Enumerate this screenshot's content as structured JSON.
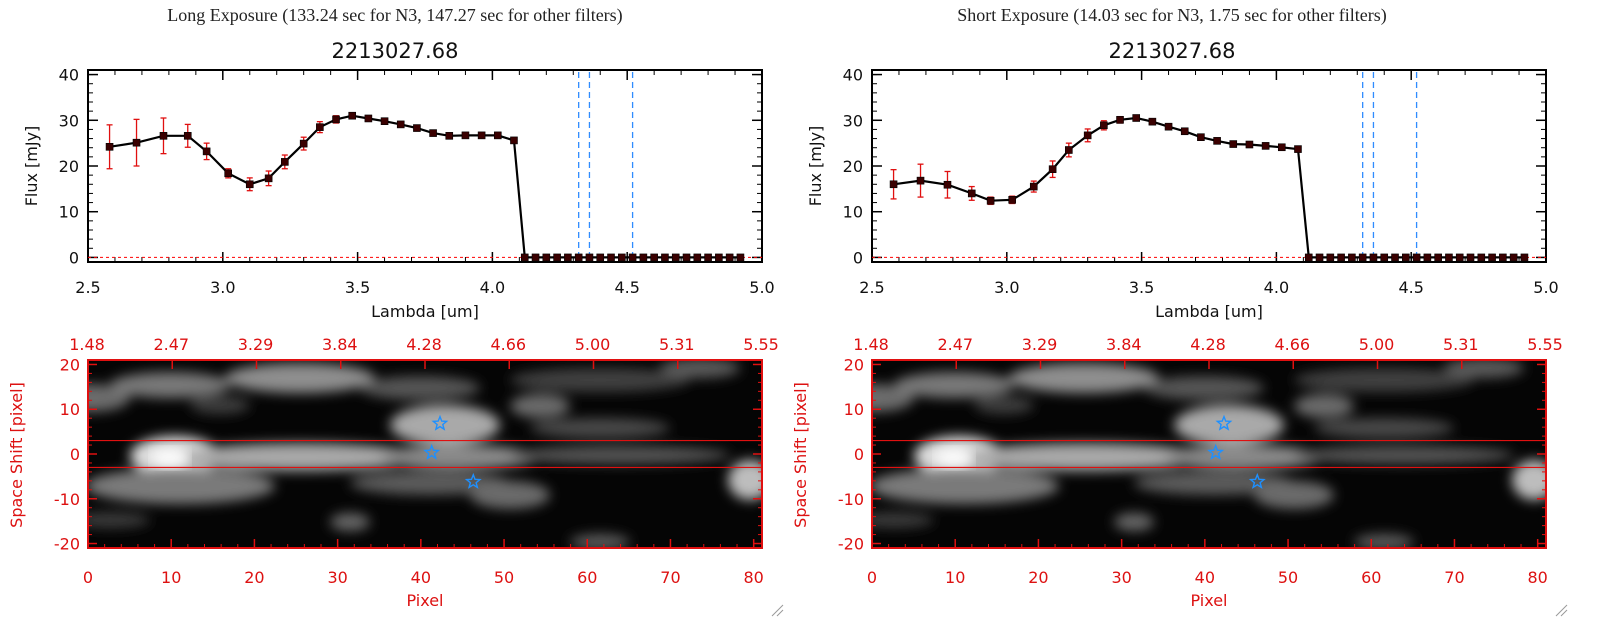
{
  "colors": {
    "series_line": "#000000",
    "marker": "#3a0000",
    "error_bar": "#e01010",
    "vline": "#2f8cff",
    "image_axis": "#e01010",
    "star": "#1e90ff",
    "zero_line": "#ff0000"
  },
  "chart_data": [
    {
      "type": "line",
      "panel": "left",
      "exposure_title": "Long Exposure (133.24 sec for N3, 147.27 sec for other filters)",
      "title": "2213027.68",
      "xlabel": "Lambda [um]",
      "ylabel": "Flux [mJy]",
      "xlim": [
        2.5,
        5.0
      ],
      "ylim": [
        -1,
        41
      ],
      "xticks": [
        "2.5",
        "3.0",
        "3.5",
        "4.0",
        "4.5",
        "5.0"
      ],
      "xtick_values": [
        2.5,
        3.0,
        3.5,
        4.0,
        4.5,
        5.0
      ],
      "yticks": [
        "0",
        "10",
        "20",
        "30",
        "40"
      ],
      "ytick_values": [
        0,
        10,
        20,
        30,
        40
      ],
      "vlines": [
        4.32,
        4.36,
        4.52
      ],
      "series": [
        {
          "name": "flux",
          "x": [
            2.58,
            2.68,
            2.78,
            2.87,
            2.94,
            3.02,
            3.1,
            3.17,
            3.23,
            3.3,
            3.36,
            3.42,
            3.48,
            3.54,
            3.6,
            3.66,
            3.72,
            3.78,
            3.84,
            3.9,
            3.96,
            4.02,
            4.08,
            4.12,
            4.16,
            4.2,
            4.24,
            4.28,
            4.32,
            4.36,
            4.4,
            4.44,
            4.48,
            4.52,
            4.56,
            4.6,
            4.64,
            4.68,
            4.72,
            4.76,
            4.8,
            4.84,
            4.88,
            4.92
          ],
          "y": [
            24.2,
            25.1,
            26.6,
            26.6,
            23.2,
            18.4,
            16.0,
            17.3,
            20.9,
            24.9,
            28.5,
            30.2,
            31.0,
            30.4,
            29.8,
            29.1,
            28.3,
            27.2,
            26.6,
            26.7,
            26.7,
            26.7,
            25.6,
            0,
            0,
            0,
            0,
            0,
            0,
            0,
            0,
            0,
            0,
            0,
            0,
            0,
            0,
            0,
            0,
            0,
            0,
            0,
            0,
            0
          ],
          "yerr": [
            4.8,
            5.1,
            3.9,
            2.5,
            1.8,
            1.0,
            1.4,
            1.6,
            1.5,
            1.4,
            1.2,
            0.8,
            0.6,
            0.5,
            0.4,
            0.4,
            0.4,
            0.4,
            0.4,
            0.3,
            0.3,
            0.3,
            0.3,
            0,
            0,
            0,
            0,
            0,
            0,
            0,
            0,
            0,
            0,
            0,
            0,
            0,
            0,
            0,
            0,
            0,
            0,
            0,
            0,
            0
          ]
        }
      ]
    },
    {
      "type": "heatmap",
      "panel": "left",
      "xlabel": "Pixel",
      "ylabel": "Space Shift [pixel]",
      "xlim": [
        0,
        81
      ],
      "ylim": [
        -21,
        21
      ],
      "xticks": [
        "0",
        "10",
        "20",
        "30",
        "40",
        "50",
        "60",
        "70",
        "80"
      ],
      "yticks": [
        "-20",
        "-10",
        "0",
        "10",
        "20"
      ],
      "top_axis_ticks": [
        "1.48",
        "2.47",
        "3.29",
        "3.84",
        "4.28",
        "4.66",
        "5.00",
        "5.31",
        "5.55"
      ],
      "aperture_lines": [
        3,
        -3
      ],
      "stars": [
        {
          "pixel": 42.3,
          "shift": 6.8
        },
        {
          "pixel": 41.3,
          "shift": 0.3
        },
        {
          "pixel": 46.3,
          "shift": -6.2
        }
      ]
    },
    {
      "type": "line",
      "panel": "right",
      "exposure_title": "Short Exposure (14.03 sec for N3, 1.75 sec for other filters)",
      "title": "2213027.68",
      "xlabel": "Lambda [um]",
      "ylabel": "Flux [mJy]",
      "xlim": [
        2.5,
        5.0
      ],
      "ylim": [
        -1,
        41
      ],
      "xticks": [
        "2.5",
        "3.0",
        "3.5",
        "4.0",
        "4.5",
        "5.0"
      ],
      "xtick_values": [
        2.5,
        3.0,
        3.5,
        4.0,
        4.5,
        5.0
      ],
      "yticks": [
        "0",
        "10",
        "20",
        "30",
        "40"
      ],
      "ytick_values": [
        0,
        10,
        20,
        30,
        40
      ],
      "vlines": [
        4.32,
        4.36,
        4.52
      ],
      "series": [
        {
          "name": "flux",
          "x": [
            2.58,
            2.68,
            2.78,
            2.87,
            2.94,
            3.02,
            3.1,
            3.17,
            3.23,
            3.3,
            3.36,
            3.42,
            3.48,
            3.54,
            3.6,
            3.66,
            3.72,
            3.78,
            3.84,
            3.9,
            3.96,
            4.02,
            4.08,
            4.12,
            4.16,
            4.2,
            4.24,
            4.28,
            4.32,
            4.36,
            4.4,
            4.44,
            4.48,
            4.52,
            4.56,
            4.6,
            4.64,
            4.68,
            4.72,
            4.76,
            4.8,
            4.84,
            4.88,
            4.92
          ],
          "y": [
            16.0,
            16.8,
            15.9,
            14.0,
            12.4,
            12.6,
            15.5,
            19.3,
            23.5,
            26.7,
            28.9,
            30.1,
            30.5,
            29.7,
            28.6,
            27.6,
            26.3,
            25.5,
            24.8,
            24.7,
            24.4,
            24.1,
            23.7,
            0,
            0,
            0,
            0,
            0,
            0,
            0,
            0,
            0,
            0,
            0,
            0,
            0,
            0,
            0,
            0,
            0,
            0,
            0,
            0,
            0
          ],
          "yerr": [
            3.2,
            3.6,
            2.9,
            1.5,
            0.8,
            0.8,
            1.2,
            1.8,
            1.5,
            1.4,
            1.0,
            0.7,
            0.5,
            0.4,
            0.4,
            0.4,
            0.4,
            0.3,
            0.3,
            0.3,
            0.3,
            0.3,
            0.3,
            0,
            0,
            0,
            0,
            0,
            0,
            0,
            0,
            0,
            0,
            0,
            0,
            0,
            0,
            0,
            0,
            0,
            0,
            0,
            0,
            0
          ]
        }
      ]
    },
    {
      "type": "heatmap",
      "panel": "right",
      "xlabel": "Pixel",
      "ylabel": "Space Shift [pixel]",
      "xlim": [
        0,
        81
      ],
      "ylim": [
        -21,
        21
      ],
      "xticks": [
        "0",
        "10",
        "20",
        "30",
        "40",
        "50",
        "60",
        "70",
        "80"
      ],
      "yticks": [
        "-20",
        "-10",
        "0",
        "10",
        "20"
      ],
      "top_axis_ticks": [
        "1.48",
        "2.47",
        "3.29",
        "3.84",
        "4.28",
        "4.66",
        "5.00",
        "5.31",
        "5.55"
      ],
      "aperture_lines": [
        3,
        -3
      ],
      "stars": [
        {
          "pixel": 42.3,
          "shift": 6.8
        },
        {
          "pixel": 41.3,
          "shift": 0.3
        },
        {
          "pixel": 46.3,
          "shift": -6.2
        }
      ]
    }
  ]
}
